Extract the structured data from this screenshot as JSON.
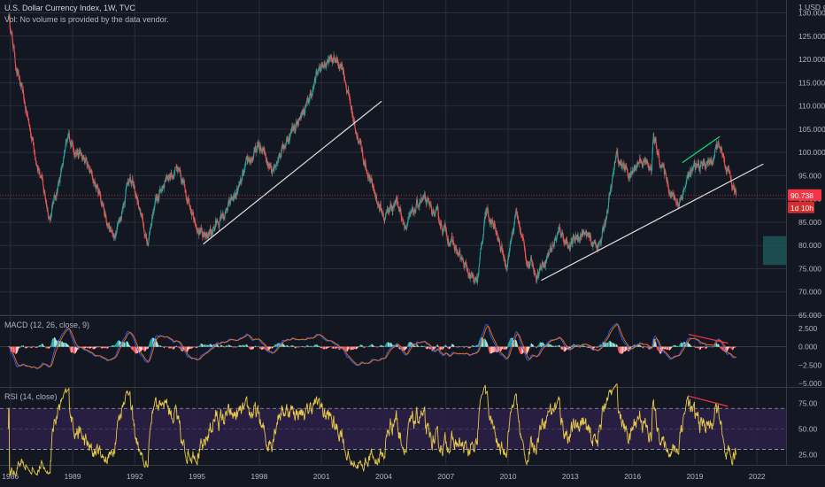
{
  "header": {
    "title": "U.S. Dollar Currency Index, 1W, TVC",
    "volume_note": "Vol: No volume is provided by the data vendor.",
    "currency": "1 USD ⊘"
  },
  "price_badge": {
    "value": "90.738",
    "countdown": "1d 10h",
    "color": "#f23645"
  },
  "colors": {
    "up": "#26a69a",
    "down": "#ef5350",
    "background": "#131722",
    "grid": "#2a2e39",
    "macd": "#2962ff",
    "signal": "#ff6d00",
    "rsi": "#e6c84a",
    "rsi_band": "#2a1f45"
  },
  "chart_data": [
    {
      "type": "candlestick",
      "panel": "price",
      "x_ticks": [
        "1986",
        "1989",
        "1992",
        "1995",
        "1998",
        "2001",
        "2004",
        "2007",
        "2010",
        "2013",
        "2016",
        "2019",
        "2022"
      ],
      "y_ticks": [
        "65.000",
        "70.000",
        "75.000",
        "80.000",
        "85.000",
        "90.000",
        "95.000",
        "100.000",
        "105.000",
        "110.000",
        "115.000",
        "120.000",
        "125.000",
        "130.000"
      ],
      "ylim": [
        65,
        132
      ],
      "xlim": [
        1985.5,
        2023.4
      ],
      "last_value": 90.738,
      "path": [
        [
          1985.9,
          130
        ],
        [
          1986.3,
          118
        ],
        [
          1986.8,
          108
        ],
        [
          1987.4,
          96
        ],
        [
          1987.9,
          86
        ],
        [
          1988.4,
          95
        ],
        [
          1988.8,
          103
        ],
        [
          1989.3,
          100
        ],
        [
          1989.7,
          97
        ],
        [
          1990.3,
          91
        ],
        [
          1990.9,
          82
        ],
        [
          1991.3,
          86
        ],
        [
          1991.7,
          95
        ],
        [
          1992.1,
          90
        ],
        [
          1992.6,
          80
        ],
        [
          1992.9,
          88
        ],
        [
          1993.5,
          95
        ],
        [
          1994.0,
          96
        ],
        [
          1994.6,
          90
        ],
        [
          1995.3,
          81
        ],
        [
          1995.8,
          84
        ],
        [
          1996.4,
          87
        ],
        [
          1997.0,
          92
        ],
        [
          1997.5,
          98
        ],
        [
          1998.0,
          101
        ],
        [
          1998.6,
          97
        ],
        [
          1999.0,
          100
        ],
        [
          1999.6,
          105
        ],
        [
          2000.3,
          110
        ],
        [
          2000.9,
          118
        ],
        [
          2001.5,
          120
        ],
        [
          2002.0,
          119
        ],
        [
          2002.5,
          108
        ],
        [
          2003.0,
          99
        ],
        [
          2003.5,
          92
        ],
        [
          2004.0,
          86
        ],
        [
          2004.6,
          90
        ],
        [
          2005.1,
          84
        ],
        [
          2005.8,
          90
        ],
        [
          2006.4,
          87
        ],
        [
          2007.0,
          83
        ],
        [
          2007.6,
          78
        ],
        [
          2008.2,
          73
        ],
        [
          2008.5,
          71
        ],
        [
          2008.9,
          87
        ],
        [
          2009.3,
          84
        ],
        [
          2009.9,
          76
        ],
        [
          2010.4,
          87
        ],
        [
          2010.9,
          77
        ],
        [
          2011.4,
          74
        ],
        [
          2012.0,
          79
        ],
        [
          2012.5,
          83
        ],
        [
          2013.0,
          80
        ],
        [
          2013.6,
          83
        ],
        [
          2014.1,
          80
        ],
        [
          2014.5,
          81
        ],
        [
          2015.0,
          93
        ],
        [
          2015.2,
          99
        ],
        [
          2015.9,
          95
        ],
        [
          2016.4,
          99
        ],
        [
          2016.9,
          96
        ],
        [
          2017.0,
          103
        ],
        [
          2017.5,
          96
        ],
        [
          2018.0,
          90
        ],
        [
          2018.2,
          89
        ],
        [
          2018.7,
          95
        ],
        [
          2019.2,
          97
        ],
        [
          2019.8,
          98
        ],
        [
          2020.2,
          102
        ],
        [
          2020.5,
          95
        ],
        [
          2020.9,
          92
        ],
        [
          2021.0,
          90.7
        ]
      ],
      "trendlines": [
        {
          "from": [
            1995.3,
            80.3
          ],
          "to": [
            2003.9,
            111
          ],
          "color": "#e0e0e0"
        },
        {
          "from": [
            2011.6,
            72.5
          ],
          "to": [
            2022.3,
            97.5
          ],
          "color": "#e0e0e0"
        },
        {
          "from": [
            2018.4,
            97.8
          ],
          "to": [
            2020.2,
            103.4
          ],
          "color": "#00e676"
        }
      ],
      "price_line": {
        "value": 90.738,
        "color": "#f23645"
      }
    },
    {
      "type": "histogram+line",
      "panel": "macd",
      "title": "MACD (12, 26, close, 9)",
      "y_ticks": [
        "2.500",
        "0.000",
        "−2.500",
        "−5.000"
      ],
      "ylim": [
        -5.5,
        4.2
      ],
      "divergence_line": {
        "from": [
          2018.7,
          1.7
        ],
        "to": [
          2020.6,
          0.5
        ],
        "color": "#f23645"
      }
    },
    {
      "type": "line",
      "panel": "rsi",
      "title": "RSI (14, close)",
      "y_ticks": [
        "75.00",
        "50.00",
        "25.00"
      ],
      "ylim": [
        15,
        90
      ],
      "band": [
        30,
        70
      ],
      "divergence_line": {
        "from": [
          2018.7,
          82
        ],
        "to": [
          2020.6,
          72
        ],
        "color": "#f23645"
      }
    }
  ]
}
